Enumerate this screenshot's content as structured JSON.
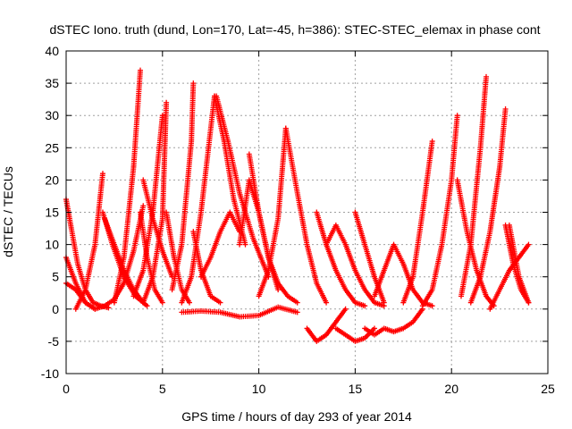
{
  "chart_data": {
    "type": "scatter",
    "title": "dSTEC Iono. truth (dund, Lon=170, Lat=-45, h=386): STEC-STEC_elemax in phase cont",
    "xlabel": "GPS time / hours of day 293 of year 2014",
    "ylabel": "dSTEC  / TECUs",
    "xlim": [
      0,
      25
    ],
    "ylim": [
      -10,
      40
    ],
    "xticks": [
      0,
      5,
      10,
      15,
      20,
      25
    ],
    "yticks": [
      -10,
      -5,
      0,
      5,
      10,
      15,
      20,
      25,
      30,
      35,
      40
    ],
    "grid": true,
    "marker": "plus",
    "color": "#ff0000",
    "series": [
      {
        "x": [
          0.0,
          0.3,
          0.6,
          1.0,
          1.4,
          1.8,
          2.2
        ],
        "y": [
          17,
          12,
          7,
          3,
          1,
          0.5,
          0.2
        ]
      },
      {
        "x": [
          0.0,
          0.5,
          1.0,
          1.5,
          2.0,
          2.5,
          3.0,
          3.5,
          4.0
        ],
        "y": [
          8,
          4,
          1,
          0,
          0.5,
          1.5,
          4,
          9,
          16
        ]
      },
      {
        "x": [
          0.5,
          1.0,
          1.5,
          1.9
        ],
        "y": [
          0,
          3,
          10,
          21
        ]
      },
      {
        "x": [
          1.9,
          2.4,
          3.0,
          3.6,
          4.2
        ],
        "y": [
          15,
          10,
          5,
          2,
          0.5
        ]
      },
      {
        "x": [
          2.5,
          3.0,
          3.5,
          3.85
        ],
        "y": [
          1,
          8,
          22,
          37
        ]
      },
      {
        "x": [
          3.85,
          4.2,
          4.6,
          5.0
        ],
        "y": [
          15,
          8,
          3,
          1
        ]
      },
      {
        "x": [
          3.5,
          4.0,
          4.5,
          5.0
        ],
        "y": [
          2,
          6,
          15,
          30
        ]
      },
      {
        "x": [
          4.0,
          4.5,
          5.0,
          5.2
        ],
        "y": [
          1,
          5,
          14,
          32
        ]
      },
      {
        "x": [
          5.2,
          5.6,
          6.0,
          6.4
        ],
        "y": [
          15,
          8,
          3,
          1
        ]
      },
      {
        "x": [
          5.5,
          6.0,
          6.5,
          6.6
        ],
        "y": [
          3,
          10,
          26,
          35
        ]
      },
      {
        "x": [
          6.6,
          7.0,
          7.5,
          8.0
        ],
        "y": [
          12,
          6,
          2,
          1
        ]
      },
      {
        "x": [
          6.0,
          6.5,
          7.0,
          7.7
        ],
        "y": [
          1,
          5,
          15,
          33
        ]
      },
      {
        "x": [
          7.7,
          8.2,
          8.7,
          9.3
        ],
        "y": [
          33,
          26,
          17,
          10
        ]
      },
      {
        "x": [
          7.8,
          8.4,
          9.0,
          9.7,
          10.5
        ],
        "y": [
          33,
          26,
          18,
          11,
          5
        ]
      },
      {
        "x": [
          9.0,
          9.5,
          10.0,
          10.5,
          11.0
        ],
        "y": [
          10,
          20,
          15,
          8,
          3
        ]
      },
      {
        "x": [
          10.0,
          10.5,
          11.0,
          11.4
        ],
        "y": [
          2,
          6,
          14,
          28
        ]
      },
      {
        "x": [
          11.4,
          12.0,
          12.5,
          13.0,
          13.5
        ],
        "y": [
          28,
          18,
          10,
          4,
          1
        ]
      },
      {
        "x": [
          6.0,
          7.0,
          8.0,
          9.0,
          10.0,
          11.0,
          12.0
        ],
        "y": [
          -0.5,
          -0.3,
          -0.5,
          -1.2,
          -1.0,
          0.3,
          -0.5
        ]
      },
      {
        "x": [
          12.5,
          13.0,
          13.5,
          14.0,
          14.5
        ],
        "y": [
          -3,
          -5,
          -4,
          -2,
          0
        ]
      },
      {
        "x": [
          13.0,
          13.5,
          14.0,
          14.5,
          15.0,
          15.5
        ],
        "y": [
          15,
          10,
          6,
          3,
          1,
          0.5
        ]
      },
      {
        "x": [
          13.5,
          14.0,
          14.5,
          15.0,
          15.5,
          16.0,
          16.5
        ],
        "y": [
          10,
          13,
          10,
          6,
          3,
          1,
          0.5
        ]
      },
      {
        "x": [
          14.0,
          14.5,
          15.0,
          15.5,
          16.0
        ],
        "y": [
          -3,
          -4,
          -5,
          -4.5,
          -3
        ]
      },
      {
        "x": [
          15.0,
          15.5,
          16.0,
          16.5
        ],
        "y": [
          15,
          10,
          5,
          1
        ]
      },
      {
        "x": [
          15.5,
          16.0,
          16.5,
          17.0,
          17.5,
          18.0,
          18.5
        ],
        "y": [
          -3,
          -4,
          -3,
          -3.5,
          -3,
          -2,
          0
        ]
      },
      {
        "x": [
          16.0,
          16.5,
          17.0,
          17.5,
          18.0,
          18.5,
          19.0
        ],
        "y": [
          2,
          6,
          10,
          7,
          3,
          1,
          0.5
        ]
      },
      {
        "x": [
          17.5,
          18.0,
          18.5,
          19.0
        ],
        "y": [
          1,
          5,
          15,
          26
        ]
      },
      {
        "x": [
          18.5,
          19.0,
          19.5,
          20.0,
          20.3
        ],
        "y": [
          0.5,
          3,
          10,
          20,
          30
        ]
      },
      {
        "x": [
          20.3,
          20.8,
          21.3,
          21.8,
          22.2
        ],
        "y": [
          20,
          12,
          6,
          2,
          0.5
        ]
      },
      {
        "x": [
          20.5,
          21.0,
          21.5,
          21.8
        ],
        "y": [
          2,
          10,
          25,
          36
        ]
      },
      {
        "x": [
          21.0,
          21.5,
          22.0,
          22.5,
          22.8
        ],
        "y": [
          1,
          5,
          12,
          22,
          31
        ]
      },
      {
        "x": [
          22.8,
          23.2,
          23.6,
          24.0
        ],
        "y": [
          13,
          7,
          3,
          1
        ]
      },
      {
        "x": [
          22.0,
          23.0,
          23.5,
          24.0
        ],
        "y": [
          0,
          6,
          8,
          10
        ]
      },
      {
        "x": [
          23.0,
          23.5,
          24.0
        ],
        "y": [
          13,
          5,
          1
        ]
      },
      {
        "x": [
          0.0,
          0.5,
          1.0,
          1.5
        ],
        "y": [
          4,
          3,
          1,
          0
        ]
      },
      {
        "x": [
          2.0,
          2.5,
          3.0,
          3.5,
          4.0
        ],
        "y": [
          14,
          10,
          6,
          3,
          1
        ]
      },
      {
        "x": [
          4.0,
          4.5,
          5.0,
          5.5
        ],
        "y": [
          20,
          14,
          9,
          5
        ]
      },
      {
        "x": [
          7.0,
          7.5,
          8.0,
          8.5,
          9.0
        ],
        "y": [
          5,
          8,
          12,
          15,
          12
        ]
      },
      {
        "x": [
          9.5,
          10.0,
          10.5,
          11.0,
          11.5,
          12.0
        ],
        "y": [
          24,
          15,
          8,
          4,
          2,
          1
        ]
      }
    ]
  }
}
